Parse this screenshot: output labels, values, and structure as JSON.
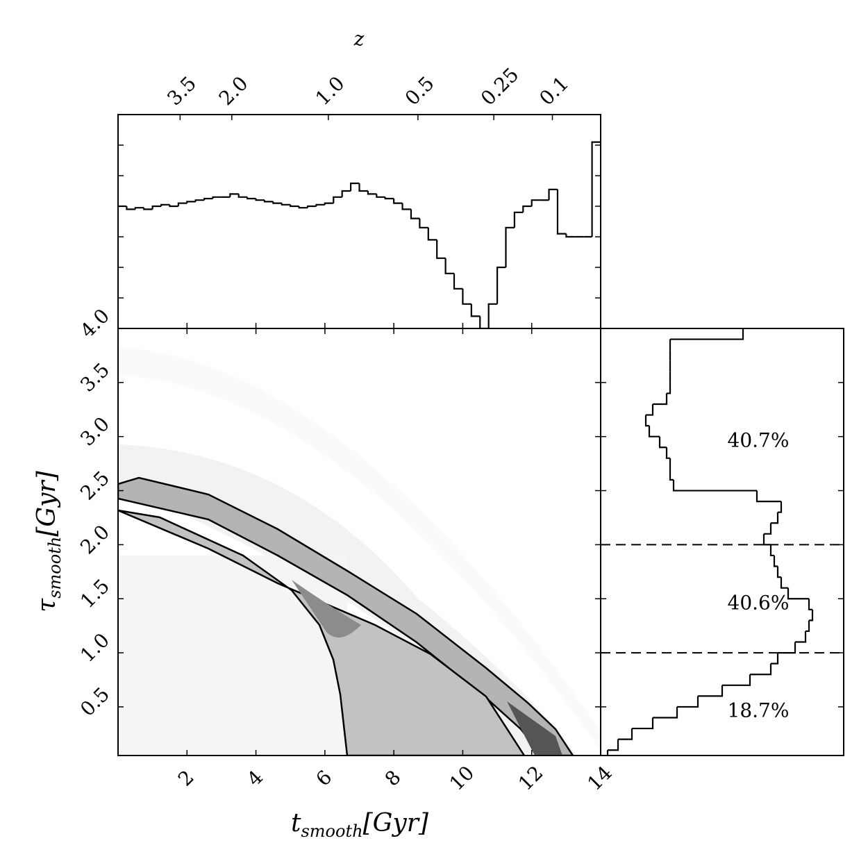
{
  "chart_data": [
    {
      "type": "histogram",
      "bins": [
        0,
        0.25,
        0.5,
        0.75,
        1,
        1.25,
        1.5,
        1.75,
        2,
        2.25,
        2.5,
        2.75,
        3,
        3.25,
        3.5,
        3.75,
        4,
        4.25,
        4.5,
        4.75,
        5,
        5.25,
        5.5,
        5.75,
        6,
        6.25,
        6.5,
        6.75,
        7,
        7.25,
        7.5,
        7.75,
        8,
        8.25,
        8.5,
        8.75,
        9,
        9.25,
        9.5,
        9.75,
        10,
        10.25,
        10.5,
        10.75,
        11,
        11.25,
        11.5,
        11.75,
        12,
        12.25,
        12.5,
        12.75,
        13,
        13.25,
        13.5,
        13.75,
        14
      ],
      "values": [
        4.0,
        3.9,
        3.95,
        3.9,
        4.0,
        4.05,
        4.0,
        4.1,
        4.15,
        4.2,
        4.25,
        4.3,
        4.3,
        4.4,
        4.3,
        4.25,
        4.2,
        4.15,
        4.1,
        4.05,
        4.0,
        3.95,
        4.0,
        4.05,
        4.1,
        4.3,
        4.5,
        4.75,
        4.5,
        4.4,
        4.3,
        4.25,
        4.1,
        3.9,
        3.6,
        3.3,
        2.9,
        2.3,
        1.8,
        1.3,
        0.8,
        0.4,
        0,
        0.8,
        2.0,
        3.3,
        3.8,
        4.0,
        4.2,
        4.2,
        4.55,
        3.1,
        3.0,
        3.0,
        3.0,
        6.1
      ],
      "color": "#000000",
      "xlim": [
        0,
        14
      ],
      "ylim": [
        0,
        7
      ],
      "yticks": [
        1,
        2,
        3,
        4,
        5,
        6
      ],
      "top_axis": {
        "label": "z",
        "ticks": [
          {
            "value": 1.8,
            "label": "3.5"
          },
          {
            "value": 3.3,
            "label": "2.0"
          },
          {
            "value": 6.1,
            "label": "1.0"
          },
          {
            "value": 8.7,
            "label": "0.5"
          },
          {
            "value": 10.9,
            "label": "0.25"
          },
          {
            "value": 12.6,
            "label": "0.1"
          }
        ]
      }
    },
    {
      "type": "density",
      "xlim": [
        0,
        14
      ],
      "ylim": [
        0.05,
        4
      ],
      "xticks": [
        2,
        4,
        6,
        8,
        10,
        12,
        14
      ],
      "yticks": [
        0.5,
        {
          "value": 1,
          "label": "1.0"
        },
        1.5,
        {
          "value": 2,
          "label": "2.0"
        },
        2.5,
        {
          "value": 3,
          "label": "3.0"
        },
        3.5,
        {
          "value": 4,
          "label": "4.0"
        }
      ],
      "x_label": {
        "symbol": "t",
        "subscript": "smooth",
        "unit": "[Gyr]"
      },
      "y_label": {
        "symbol": "τ",
        "subscript": "smooth",
        "unit": "[Gyr]"
      }
    },
    {
      "type": "histogram",
      "orientation": "horizontal",
      "bins": [
        0,
        0.1,
        0.2,
        0.3,
        0.4,
        0.5,
        0.6,
        0.7,
        0.8,
        0.9,
        1.0,
        1.1,
        1.2,
        1.3,
        1.4,
        1.5,
        1.6,
        1.7,
        1.8,
        1.9,
        2.0,
        2.1,
        2.2,
        2.3,
        2.4,
        2.5,
        2.6,
        2.7,
        2.8,
        2.9,
        3.0,
        3.1,
        3.2,
        3.3,
        3.4,
        3.5,
        3.6,
        3.7,
        3.8,
        3.9,
        4.0
      ],
      "values": [
        0.2,
        0.5,
        0.9,
        1.5,
        2.2,
        2.8,
        3.5,
        4.3,
        4.9,
        5.1,
        5.6,
        5.9,
        6.0,
        6.1,
        6.0,
        5.4,
        5.2,
        5.1,
        5.0,
        4.9,
        4.7,
        4.9,
        5.1,
        5.2,
        4.5,
        2.1,
        2.0,
        2.0,
        1.9,
        1.7,
        1.4,
        1.3,
        1.5,
        1.9,
        2.0,
        2.0,
        2.0,
        2.0,
        2.0,
        4.1
      ],
      "color": "#000000",
      "xlim": [
        0,
        7
      ],
      "dividers": [
        1,
        2
      ],
      "annotations": [
        "40.7%",
        "40.6%",
        "18.7%"
      ]
    }
  ]
}
